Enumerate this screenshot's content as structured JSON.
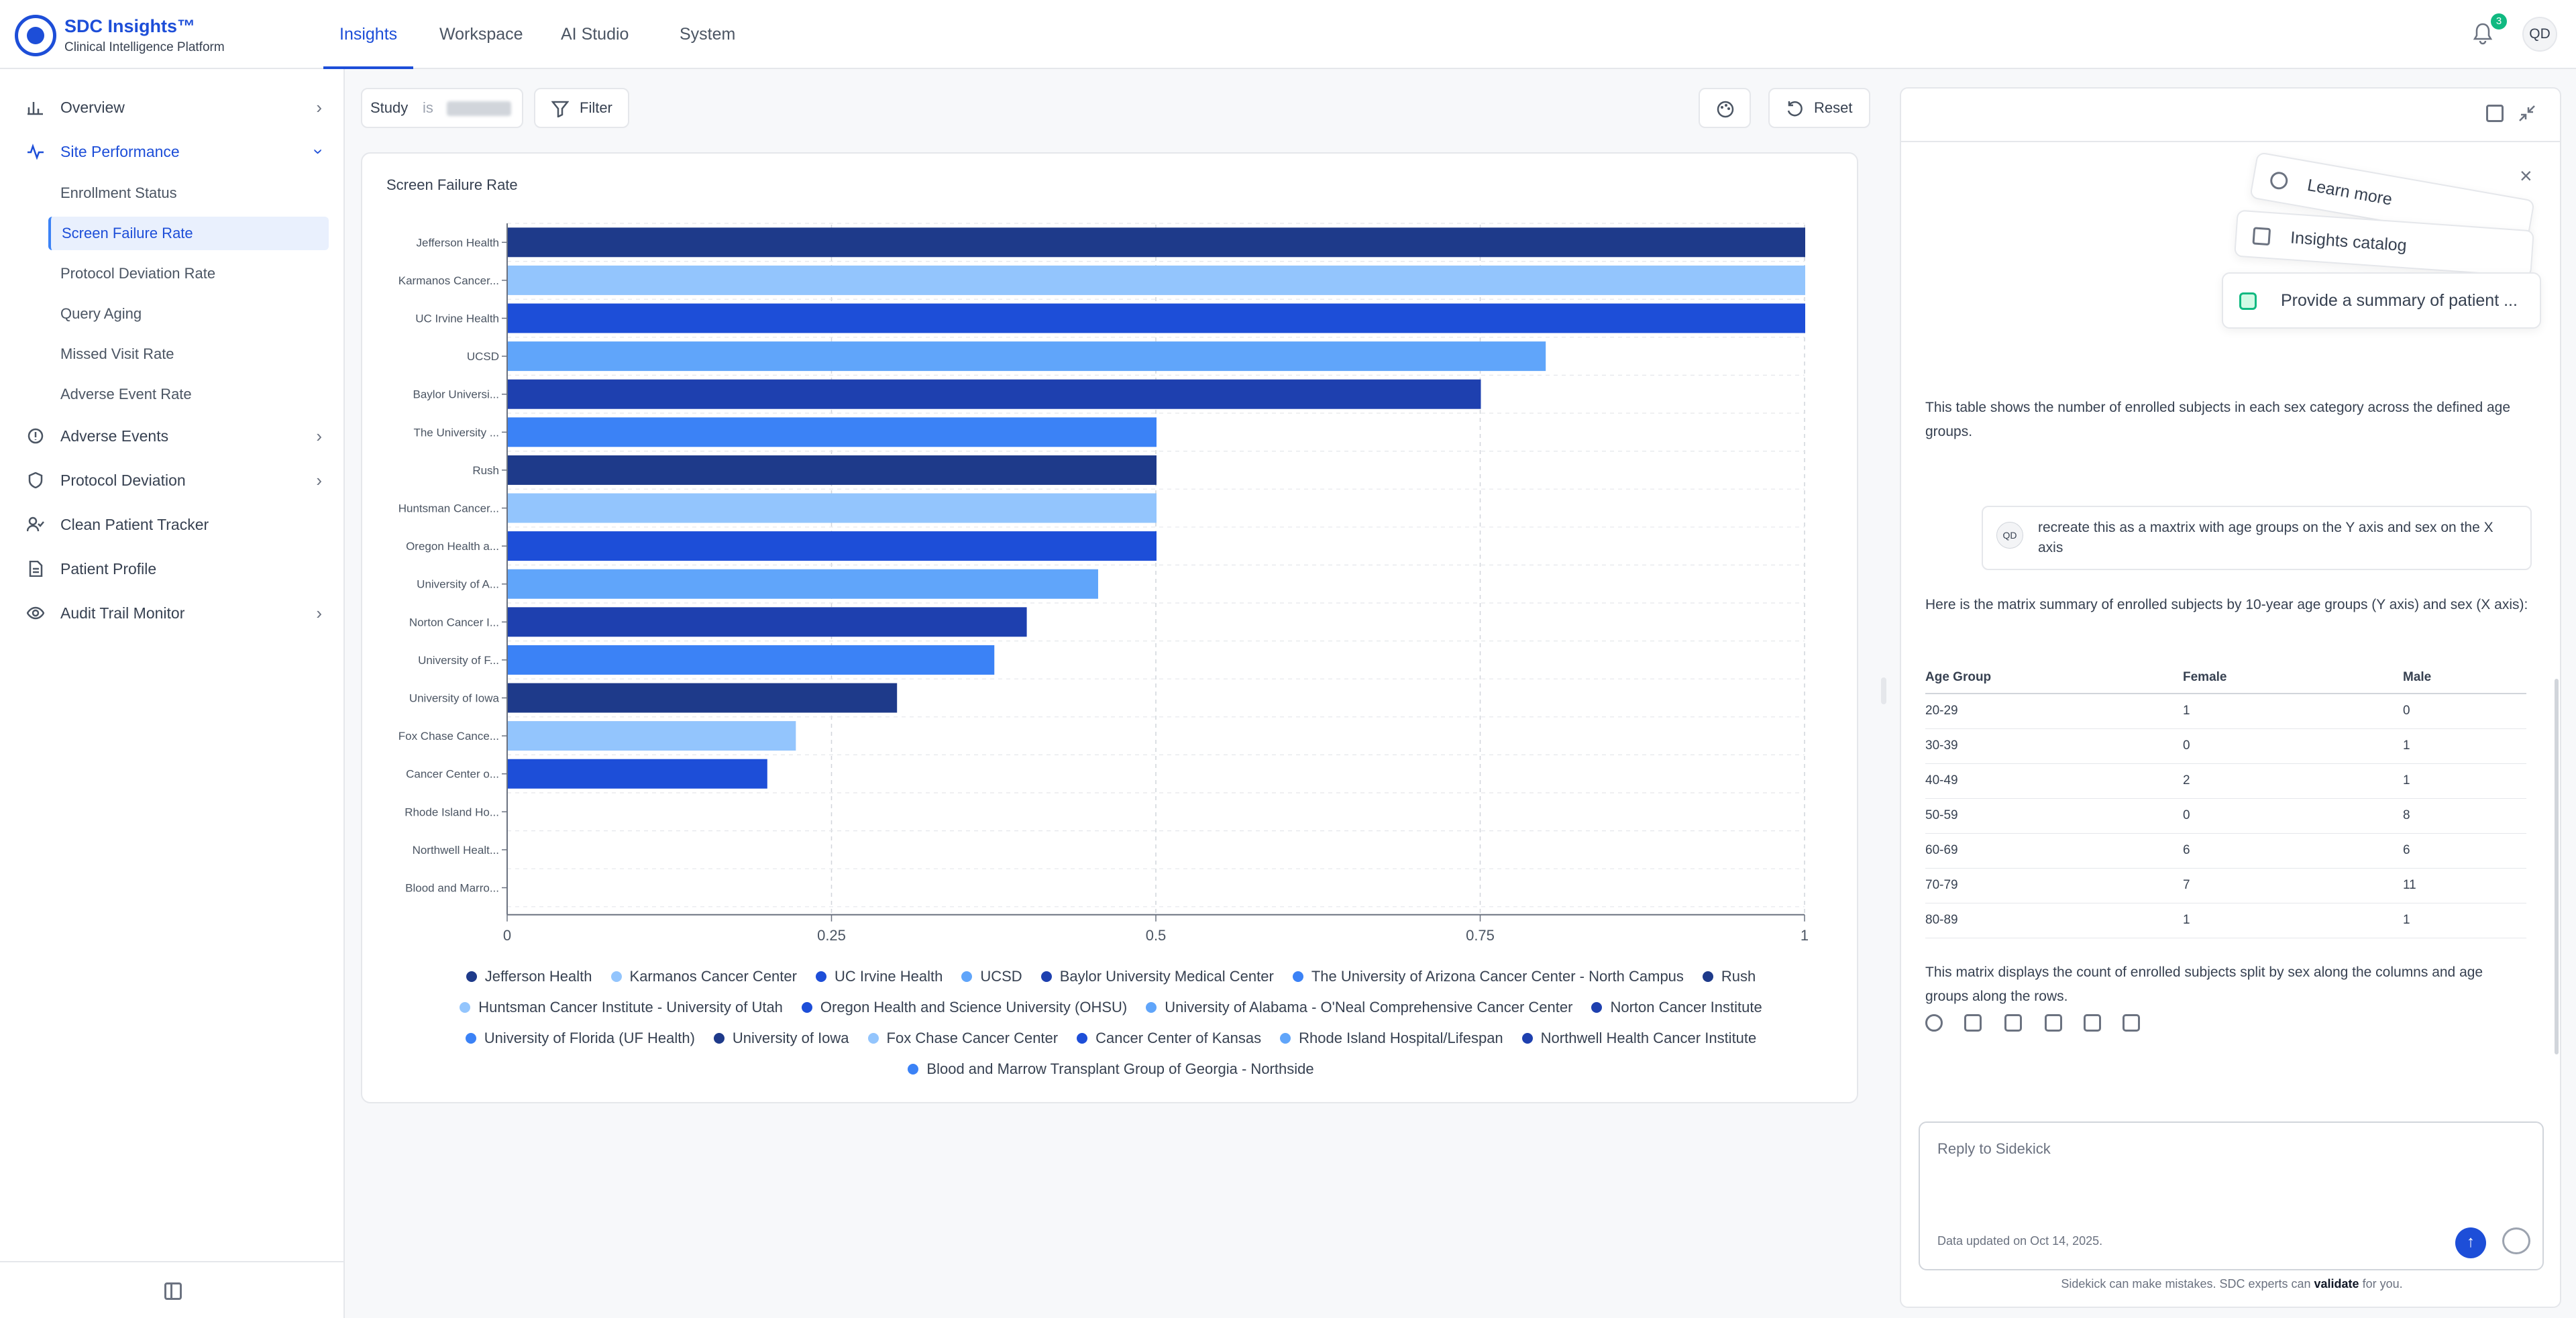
{
  "brand": {
    "name": "SDC Insights™",
    "subtitle": "Clinical Intelligence Platform"
  },
  "nav": {
    "tabs": [
      "Insights",
      "Workspace",
      "AI Studio",
      "System"
    ],
    "active": "Insights"
  },
  "header": {
    "notifications": "3",
    "avatar": "QD"
  },
  "sidebar": {
    "items": [
      {
        "label": "Overview"
      },
      {
        "label": "Site Performance",
        "sub": [
          "Enrollment Status",
          "Screen Failure Rate",
          "Protocol Deviation Rate",
          "Query Aging",
          "Missed Visit Rate",
          "Adverse Event Rate"
        ]
      },
      {
        "label": "Adverse Events"
      },
      {
        "label": "Protocol Deviation"
      },
      {
        "label": "Clean Patient Tracker"
      },
      {
        "label": "Patient Profile"
      },
      {
        "label": "Audit Trail Monitor"
      }
    ]
  },
  "filter": {
    "study_label": "Study",
    "op": "is",
    "filter_label": "Filter",
    "reset_label": "Reset"
  },
  "colors": {
    "accent": "#1d4ed8"
  },
  "chart_data": {
    "type": "bar",
    "orientation": "horizontal",
    "title": "Screen Failure Rate",
    "categories": [
      "Jefferson Health",
      "Karmanos Cancer...",
      "UC Irvine Health",
      "UCSD",
      "Baylor Universi...",
      "The University ...",
      "Rush",
      "Huntsman Cancer...",
      "Oregon Health a...",
      "University of A...",
      "Norton Cancer I...",
      "University of F...",
      "University of Iowa",
      "Fox Chase Cance...",
      "Cancer Center o...",
      "Rhode Island Ho...",
      "Northwell Healt...",
      "Blood and Marro..."
    ],
    "values": [
      1,
      1,
      1,
      0.8,
      0.75,
      0.5,
      0.5,
      0.5,
      0.5,
      0.455,
      0.4,
      0.375,
      0.3,
      0.222,
      0.2,
      0,
      0,
      0
    ],
    "colors": [
      "#1e3a8a",
      "#93c5fd",
      "#1d4ed8",
      "#60a5fa",
      "#1e40af",
      "#3b82f6",
      "#1e3a8a",
      "#93c5fd",
      "#1d4ed8",
      "#60a5fa",
      "#1e40af",
      "#3b82f6",
      "#1e3a8a",
      "#93c5fd",
      "#1d4ed8",
      "#60a5fa",
      "#1e40af",
      "#3b82f6"
    ],
    "xlim": [
      0,
      1
    ],
    "xticks": [
      "0",
      "0.25",
      "0.5",
      "0.75",
      "1"
    ],
    "grid": true,
    "legend": [
      [
        "Jefferson Health",
        "Karmanos Cancer Center",
        "UC Irvine Health",
        "UCSD",
        "Baylor University Medical Center",
        "The University of Arizona Cancer Center - North Campus",
        "Rush"
      ],
      [
        "Huntsman Cancer Institute - University of Utah",
        "Oregon Health and Science University (OHSU)",
        "University of Alabama - O'Neal Comprehensive Cancer Center",
        "Norton Cancer Institute"
      ],
      [
        "University of Florida (UF Health)",
        "University of Iowa",
        "Fox Chase Cancer Center",
        "Cancer Center of Kansas",
        "Rhode Island Hospital/Lifespan",
        "Northwell Health Cancer Institute"
      ],
      [
        "Blood and Marrow Transplant Group of Georgia - Northside"
      ]
    ]
  },
  "sidekick": {
    "suggestions": [
      "Learn more",
      "Insights catalog",
      "Provide a summary of patient ..."
    ],
    "text1": "This table shows the number of enrolled subjects in each sex category across the defined age groups.",
    "user_initials": "QD",
    "user_msg": "recreate this as a maxtrix with age groups on the Y axis and sex on the X axis",
    "text2": "Here is the matrix summary of enrolled subjects by 10-year age groups (Y axis) and sex (X axis):",
    "table": {
      "headers": [
        "Age Group",
        "Female",
        "Male"
      ],
      "rows": [
        [
          "20-29",
          "1",
          "0"
        ],
        [
          "30-39",
          "0",
          "1"
        ],
        [
          "40-49",
          "2",
          "1"
        ],
        [
          "50-59",
          "0",
          "8"
        ],
        [
          "60-69",
          "6",
          "6"
        ],
        [
          "70-79",
          "7",
          "11"
        ],
        [
          "80-89",
          "1",
          "1"
        ]
      ]
    },
    "text3": "This matrix displays the count of enrolled subjects split by sex along the columns and age groups along the rows.",
    "composer_placeholder": "Reply to Sidekick",
    "updated": "Data updated on Oct 14, 2025.",
    "disclaimer_pre": "Sidekick can make mistakes. SDC experts can",
    "disclaimer_bold": "validate",
    "disclaimer_post": "for you."
  }
}
